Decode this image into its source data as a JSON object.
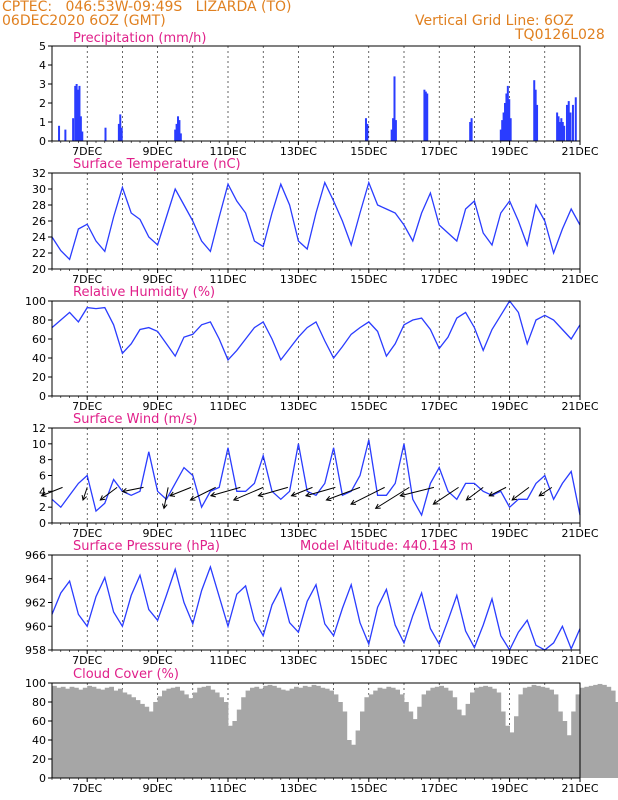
{
  "header": {
    "line1": "CPTEC:   046:53W-09:49S   LIZARDA (TO)",
    "line2": "06DEC2020 6OZ (GMT)",
    "grid_note": "Vertical Grid Line: 6OZ",
    "model_code": "TQ0126L028"
  },
  "colors": {
    "header": "#e08020",
    "title": "#e0208a",
    "series": "#2a3cff",
    "cloud": "#a6a6a6",
    "axis": "#000000"
  },
  "chart_data": [
    {
      "type": "bar",
      "title": "Precipitation (mm/h)",
      "ylim": [
        0,
        5
      ],
      "yticks": [
        0,
        1,
        2,
        3,
        4,
        5
      ],
      "xlim": [
        0,
        15
      ],
      "x_unit": "days since 06DEC2020 00Z",
      "xticks": [
        {
          "x": 1,
          "label": "7DEC"
        },
        {
          "x": 3,
          "label": "9DEC"
        },
        {
          "x": 5,
          "label": "11DEC"
        },
        {
          "x": 7,
          "label": "13DEC"
        },
        {
          "x": 9,
          "label": "15DEC"
        },
        {
          "x": 11,
          "label": "17DEC"
        },
        {
          "x": 13,
          "label": "19DEC"
        },
        {
          "x": 15,
          "label": "21DEC"
        }
      ],
      "bars": [
        [
          0.2,
          0.8
        ],
        [
          0.38,
          0.6
        ],
        [
          0.6,
          1.2
        ],
        [
          0.66,
          2.9
        ],
        [
          0.7,
          3.0
        ],
        [
          0.74,
          2.7
        ],
        [
          0.78,
          2.9
        ],
        [
          0.82,
          1.3
        ],
        [
          0.86,
          0.5
        ],
        [
          1.52,
          0.7
        ],
        [
          1.9,
          0.9
        ],
        [
          1.94,
          1.4
        ],
        [
          1.98,
          0.7
        ],
        [
          3.5,
          0.6
        ],
        [
          3.54,
          0.9
        ],
        [
          3.58,
          1.3
        ],
        [
          3.62,
          1.1
        ],
        [
          3.66,
          0.4
        ],
        [
          8.92,
          1.2
        ],
        [
          8.96,
          0.9
        ],
        [
          9.65,
          0.6
        ],
        [
          9.69,
          1.2
        ],
        [
          9.73,
          3.4
        ],
        [
          9.77,
          1.1
        ],
        [
          10.58,
          2.7
        ],
        [
          10.62,
          2.6
        ],
        [
          10.66,
          2.5
        ],
        [
          11.88,
          1.0
        ],
        [
          11.92,
          1.2
        ],
        [
          12.75,
          0.6
        ],
        [
          12.79,
          1.1
        ],
        [
          12.83,
          1.5
        ],
        [
          12.87,
          2.0
        ],
        [
          12.91,
          2.5
        ],
        [
          12.95,
          2.9
        ],
        [
          12.99,
          2.2
        ],
        [
          13.03,
          1.2
        ],
        [
          13.7,
          3.2
        ],
        [
          13.74,
          2.7
        ],
        [
          13.78,
          1.9
        ],
        [
          14.35,
          1.5
        ],
        [
          14.39,
          1.3
        ],
        [
          14.43,
          1.0
        ],
        [
          14.47,
          1.2
        ],
        [
          14.51,
          1.0
        ],
        [
          14.55,
          0.8
        ],
        [
          14.63,
          1.9
        ],
        [
          14.68,
          2.1
        ],
        [
          14.73,
          1.5
        ],
        [
          14.8,
          1.9
        ],
        [
          14.88,
          2.3
        ]
      ]
    },
    {
      "type": "line",
      "title": "Surface Temperature (nC)",
      "ylim": [
        20,
        32
      ],
      "yticks": [
        20,
        22,
        24,
        26,
        28,
        30,
        32
      ],
      "xlim": [
        0,
        15
      ],
      "x_unit": "days since 06DEC2020 00Z",
      "xticks": [
        {
          "x": 1,
          "label": "7DEC"
        },
        {
          "x": 3,
          "label": "9DEC"
        },
        {
          "x": 5,
          "label": "11DEC"
        },
        {
          "x": 7,
          "label": "13DEC"
        },
        {
          "x": 9,
          "label": "15DEC"
        },
        {
          "x": 11,
          "label": "17DEC"
        },
        {
          "x": 13,
          "label": "19DEC"
        },
        {
          "x": 15,
          "label": "21DEC"
        }
      ],
      "x": [
        0,
        0.25,
        0.5,
        0.75,
        1,
        1.25,
        1.5,
        1.75,
        2,
        2.25,
        2.5,
        2.75,
        3,
        3.25,
        3.5,
        3.75,
        4,
        4.25,
        4.5,
        4.75,
        5,
        5.25,
        5.5,
        5.75,
        6,
        6.25,
        6.5,
        6.75,
        7,
        7.25,
        7.5,
        7.75,
        8,
        8.25,
        8.5,
        8.75,
        9,
        9.25,
        9.5,
        9.75,
        10,
        10.25,
        10.5,
        10.75,
        11,
        11.25,
        11.5,
        11.75,
        12,
        12.25,
        12.5,
        12.75,
        13,
        13.25,
        13.5,
        13.75,
        14,
        14.25,
        14.5,
        14.75,
        15
      ],
      "values": [
        24,
        22.3,
        21.2,
        25.0,
        25.6,
        23.5,
        22.2,
        26.5,
        30.2,
        27.0,
        26.2,
        24.0,
        23.0,
        26.5,
        30.0,
        28.0,
        26.0,
        23.5,
        22.2,
        26.5,
        30.6,
        28.5,
        27.0,
        23.5,
        22.8,
        27.0,
        30.6,
        28.0,
        23.5,
        22.5,
        27.0,
        30.8,
        28.5,
        26.0,
        23.0,
        27.0,
        30.8,
        28.0,
        27.5,
        27.0,
        25.5,
        23.5,
        27.0,
        29.5,
        25.5,
        24.5,
        23.5,
        27.5,
        28.5,
        24.5,
        23.0,
        27.0,
        28.5,
        26.0,
        23.0,
        28.0,
        26.0,
        22.0,
        25.0,
        27.5,
        25.5
      ]
    },
    {
      "type": "line",
      "title": "Relative Humidity (%)",
      "ylim": [
        0,
        100
      ],
      "yticks": [
        0,
        20,
        40,
        60,
        80,
        100
      ],
      "xlim": [
        0,
        15
      ],
      "x_unit": "days since 06DEC2020 00Z",
      "xticks": [
        {
          "x": 1,
          "label": "7DEC"
        },
        {
          "x": 3,
          "label": "9DEC"
        },
        {
          "x": 5,
          "label": "11DEC"
        },
        {
          "x": 7,
          "label": "13DEC"
        },
        {
          "x": 9,
          "label": "15DEC"
        },
        {
          "x": 11,
          "label": "17DEC"
        },
        {
          "x": 13,
          "label": "19DEC"
        },
        {
          "x": 15,
          "label": "21DEC"
        }
      ],
      "x": [
        0,
        0.25,
        0.5,
        0.75,
        1,
        1.25,
        1.5,
        1.75,
        2,
        2.25,
        2.5,
        2.75,
        3,
        3.25,
        3.5,
        3.75,
        4,
        4.25,
        4.5,
        4.75,
        5,
        5.25,
        5.5,
        5.75,
        6,
        6.25,
        6.5,
        6.75,
        7,
        7.25,
        7.5,
        7.75,
        8,
        8.25,
        8.5,
        8.75,
        9,
        9.25,
        9.5,
        9.75,
        10,
        10.25,
        10.5,
        10.75,
        11,
        11.25,
        11.5,
        11.75,
        12,
        12.25,
        12.5,
        12.75,
        13,
        13.25,
        13.5,
        13.75,
        14,
        14.25,
        14.5,
        14.75,
        15
      ],
      "values": [
        72,
        80,
        88,
        78,
        93,
        92,
        93,
        75,
        45,
        55,
        70,
        72,
        68,
        55,
        42,
        62,
        65,
        75,
        78,
        60,
        38,
        48,
        60,
        72,
        78,
        60,
        38,
        50,
        62,
        72,
        78,
        58,
        40,
        52,
        65,
        72,
        78,
        68,
        42,
        55,
        75,
        80,
        82,
        70,
        50,
        62,
        82,
        88,
        72,
        48,
        70,
        85,
        100,
        88,
        55,
        80,
        85,
        80,
        70,
        60,
        75
      ]
    },
    {
      "type": "line",
      "title": "Surface Wind (m/s)",
      "ylim": [
        0,
        12
      ],
      "yticks": [
        0,
        2,
        4,
        6,
        8,
        10,
        12
      ],
      "xlim": [
        0,
        15
      ],
      "x_unit": "days since 06DEC2020 00Z",
      "xticks": [
        {
          "x": 1,
          "label": "7DEC"
        },
        {
          "x": 3,
          "label": "9DEC"
        },
        {
          "x": 5,
          "label": "11DEC"
        },
        {
          "x": 7,
          "label": "13DEC"
        },
        {
          "x": 9,
          "label": "15DEC"
        },
        {
          "x": 11,
          "label": "17DEC"
        },
        {
          "x": 13,
          "label": "19DEC"
        },
        {
          "x": 15,
          "label": "21DEC"
        }
      ],
      "x": [
        0,
        0.25,
        0.5,
        0.75,
        1,
        1.25,
        1.5,
        1.75,
        2,
        2.25,
        2.5,
        2.75,
        3,
        3.25,
        3.5,
        3.75,
        4,
        4.25,
        4.5,
        4.75,
        5,
        5.25,
        5.5,
        5.75,
        6,
        6.25,
        6.5,
        6.75,
        7,
        7.25,
        7.5,
        7.75,
        8,
        8.25,
        8.5,
        8.75,
        9,
        9.25,
        9.5,
        9.75,
        10,
        10.25,
        10.5,
        10.75,
        11,
        11.25,
        11.5,
        11.75,
        12,
        12.25,
        12.5,
        12.75,
        13,
        13.25,
        13.5,
        13.75,
        14,
        14.25,
        14.5,
        14.75,
        15
      ],
      "values": [
        3,
        2,
        3.5,
        5,
        6,
        1.5,
        2.5,
        5.5,
        4,
        3.5,
        4,
        9,
        4,
        3,
        5,
        7,
        6,
        2,
        4,
        4.5,
        9.5,
        4,
        4,
        5,
        8.5,
        4,
        3,
        4,
        10,
        4,
        3.5,
        5,
        9.5,
        3.5,
        4,
        6,
        10.5,
        3.5,
        3.5,
        5,
        10,
        3,
        1,
        5,
        7,
        4,
        3,
        5,
        5,
        4,
        3.5,
        4,
        2,
        3,
        3,
        5,
        6,
        3,
        5,
        6.5,
        1
      ],
      "arrows": [
        {
          "x": 0.3,
          "dx": -5,
          "dy": 2
        },
        {
          "x": 1.0,
          "dx": -1,
          "dy": 3
        },
        {
          "x": 1.85,
          "dx": -4,
          "dy": 3
        },
        {
          "x": 2.6,
          "dx": -5,
          "dy": 1
        },
        {
          "x": 3.3,
          "dx": -1,
          "dy": 5
        },
        {
          "x": 3.95,
          "dx": -5,
          "dy": 2
        },
        {
          "x": 4.65,
          "dx": -6,
          "dy": 3
        },
        {
          "x": 5.35,
          "dx": -7,
          "dy": 2
        },
        {
          "x": 6.0,
          "dx": -7,
          "dy": 3
        },
        {
          "x": 6.7,
          "dx": -7,
          "dy": 2
        },
        {
          "x": 7.4,
          "dx": -5,
          "dy": 2
        },
        {
          "x": 8.05,
          "dx": -7,
          "dy": 2
        },
        {
          "x": 8.75,
          "dx": -8,
          "dy": 3
        },
        {
          "x": 9.45,
          "dx": -8,
          "dy": 4
        },
        {
          "x": 10.15,
          "dx": -8,
          "dy": 5
        },
        {
          "x": 10.85,
          "dx": -8,
          "dy": 2
        },
        {
          "x": 11.55,
          "dx": -6,
          "dy": 4
        },
        {
          "x": 12.25,
          "dx": -4,
          "dy": 3
        },
        {
          "x": 12.9,
          "dx": -4,
          "dy": 2
        },
        {
          "x": 13.55,
          "dx": -4,
          "dy": 3
        },
        {
          "x": 14.2,
          "dx": -3,
          "dy": 2
        }
      ]
    },
    {
      "type": "line",
      "title": "Surface Pressure (hPa)",
      "annotation": "Model Altitude: 440.143 m",
      "ylim": [
        958,
        966
      ],
      "yticks": [
        958,
        960,
        962,
        964,
        966
      ],
      "xlim": [
        0,
        15
      ],
      "x_unit": "days since 06DEC2020 00Z",
      "xticks": [
        {
          "x": 1,
          "label": "7DEC"
        },
        {
          "x": 3,
          "label": "9DEC"
        },
        {
          "x": 5,
          "label": "11DEC"
        },
        {
          "x": 7,
          "label": "13DEC"
        },
        {
          "x": 9,
          "label": "15DEC"
        },
        {
          "x": 11,
          "label": "17DEC"
        },
        {
          "x": 13,
          "label": "19DEC"
        },
        {
          "x": 15,
          "label": "21DEC"
        }
      ],
      "x": [
        0,
        0.25,
        0.5,
        0.75,
        1,
        1.25,
        1.5,
        1.75,
        2,
        2.25,
        2.5,
        2.75,
        3,
        3.25,
        3.5,
        3.75,
        4,
        4.25,
        4.5,
        4.75,
        5,
        5.25,
        5.5,
        5.75,
        6,
        6.25,
        6.5,
        6.75,
        7,
        7.25,
        7.5,
        7.75,
        8,
        8.25,
        8.5,
        8.75,
        9,
        9.25,
        9.5,
        9.75,
        10,
        10.25,
        10.5,
        10.75,
        11,
        11.25,
        11.5,
        11.75,
        12,
        12.25,
        12.5,
        12.75,
        13,
        13.25,
        13.5,
        13.75,
        14,
        14.25,
        14.5,
        14.75,
        15
      ],
      "values": [
        961,
        962.8,
        963.8,
        961,
        960,
        962.5,
        964.1,
        961.2,
        960,
        962.6,
        964.3,
        961.4,
        960.5,
        962.6,
        964.8,
        962,
        960.2,
        963,
        965,
        962.5,
        960,
        962.7,
        963.4,
        960.5,
        959.2,
        961.8,
        963.2,
        960.3,
        959.5,
        962.1,
        963.5,
        960.2,
        959.2,
        961.5,
        963.5,
        960.3,
        958.5,
        961.6,
        963.1,
        960.1,
        958.6,
        960.9,
        962.8,
        959.8,
        958.5,
        960.5,
        962.6,
        959.6,
        958.2,
        960.1,
        962.3,
        959.2,
        958,
        959.5,
        960.5,
        958.4,
        958,
        958.6,
        960,
        958.1,
        959.8
      ]
    },
    {
      "type": "bar",
      "title": "Cloud Cover (%)",
      "ylim": [
        0,
        100
      ],
      "yticks": [
        0,
        20,
        40,
        60,
        80,
        100
      ],
      "xlim": [
        0,
        15
      ],
      "x_unit": "days since 06DEC2020 00Z",
      "xticks": [
        {
          "x": 1,
          "label": "7DEC"
        },
        {
          "x": 3,
          "label": "9DEC"
        },
        {
          "x": 5,
          "label": "11DEC"
        },
        {
          "x": 7,
          "label": "13DEC"
        },
        {
          "x": 9,
          "label": "15DEC"
        },
        {
          "x": 11,
          "label": "17DEC"
        },
        {
          "x": 13,
          "label": "19DEC"
        },
        {
          "x": 15,
          "label": "21DEC"
        }
      ],
      "step": 0.125,
      "values": [
        97,
        95,
        96,
        94,
        96,
        95,
        93,
        95,
        97,
        96,
        94,
        93,
        95,
        96,
        92,
        94,
        90,
        88,
        85,
        82,
        78,
        75,
        70,
        80,
        86,
        92,
        94,
        95,
        96,
        92,
        88,
        84,
        90,
        95,
        96,
        97,
        93,
        90,
        85,
        80,
        55,
        60,
        72,
        85,
        92,
        95,
        96,
        94,
        97,
        98,
        97,
        95,
        93,
        92,
        94,
        96,
        95,
        97,
        96,
        98,
        97,
        95,
        94,
        92,
        88,
        80,
        70,
        40,
        35,
        50,
        70,
        85,
        88,
        92,
        95,
        94,
        96,
        95,
        93,
        88,
        80,
        70,
        62,
        75,
        88,
        92,
        95,
        96,
        97,
        95,
        92,
        85,
        72,
        66,
        78,
        90,
        95,
        96,
        97,
        96,
        94,
        90,
        70,
        55,
        48,
        65,
        88,
        95,
        96,
        98,
        97,
        96,
        95,
        93,
        88,
        70,
        60,
        45,
        70,
        88,
        95,
        96,
        97,
        98,
        99,
        98,
        96,
        92,
        80,
        60,
        52,
        70,
        92,
        95,
        96,
        97,
        95,
        93,
        88,
        75,
        62,
        48,
        62,
        85,
        92,
        95,
        96,
        97,
        98,
        96,
        92,
        85,
        70,
        55,
        45,
        62,
        90,
        95,
        96,
        98,
        99,
        97,
        95,
        93,
        88,
        70,
        55,
        60,
        80,
        92,
        95,
        96,
        98,
        97,
        96,
        94,
        90,
        85,
        75,
        45,
        32,
        15,
        65,
        88,
        95,
        97,
        96,
        95,
        93,
        90,
        75,
        58,
        50,
        78,
        92,
        96,
        97,
        98,
        97,
        95,
        93,
        90,
        80,
        62,
        70,
        88,
        95,
        96,
        97,
        98,
        97,
        96,
        95,
        93,
        90,
        85,
        80,
        88,
        95,
        97,
        98,
        99,
        98,
        97,
        96,
        95,
        93,
        92,
        94,
        96,
        95,
        97,
        98,
        99,
        98,
        97,
        96,
        95,
        94,
        95,
        97,
        96,
        98,
        99,
        100,
        99,
        98,
        96,
        94,
        92,
        90,
        95,
        97,
        98,
        99,
        98,
        97,
        96,
        95,
        96,
        97,
        98,
        98,
        99,
        99,
        98,
        97,
        96,
        95,
        96,
        97,
        98,
        99
      ]
    }
  ]
}
